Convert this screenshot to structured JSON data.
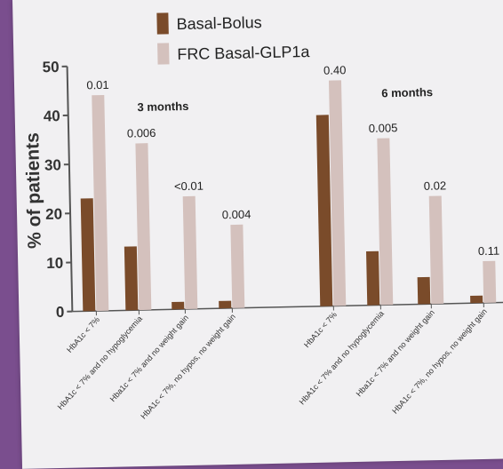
{
  "chart_data": {
    "type": "bar",
    "ylabel": "% of patients",
    "ylim": [
      0,
      50
    ],
    "yticks": [
      0,
      10,
      20,
      30,
      40,
      50
    ],
    "legend_position": "top",
    "series": [
      {
        "name": "Basal-Bolus",
        "color": "#7a4b2a"
      },
      {
        "name": "FRC Basal-GLP1a",
        "color": "#d4c1bd"
      }
    ],
    "groups": [
      {
        "label": "3 months",
        "categories": [
          {
            "label": "HbA1c < 7%",
            "values": [
              23,
              44
            ],
            "p": "0.01"
          },
          {
            "label": "HbA1c < 7% and no hypoglycemia",
            "values": [
              13,
              34
            ],
            "p": "0.006"
          },
          {
            "label": "Hba1c < 7% and no weight gain",
            "values": [
              1.5,
              23
            ],
            "p": "<0.01"
          },
          {
            "label": "HbA1c < 7%, no hypos, no weight gain",
            "values": [
              1.5,
              17
            ],
            "p": "0.004"
          }
        ]
      },
      {
        "label": "6 months",
        "categories": [
          {
            "label": "HbA1c < 7%",
            "values": [
              39,
              46
            ],
            "p": "0.40"
          },
          {
            "label": "HbA1c < 7% and no hypoglycemia",
            "values": [
              11,
              34
            ],
            "p": "0.005"
          },
          {
            "label": "Hba1c < 7% and no weight gain",
            "values": [
              5.5,
              22
            ],
            "p": "0.02"
          },
          {
            "label": "HbA1c < 7%, no hypos, no weight gain",
            "values": [
              1.5,
              8.5
            ],
            "p": "0.11"
          }
        ]
      }
    ]
  }
}
